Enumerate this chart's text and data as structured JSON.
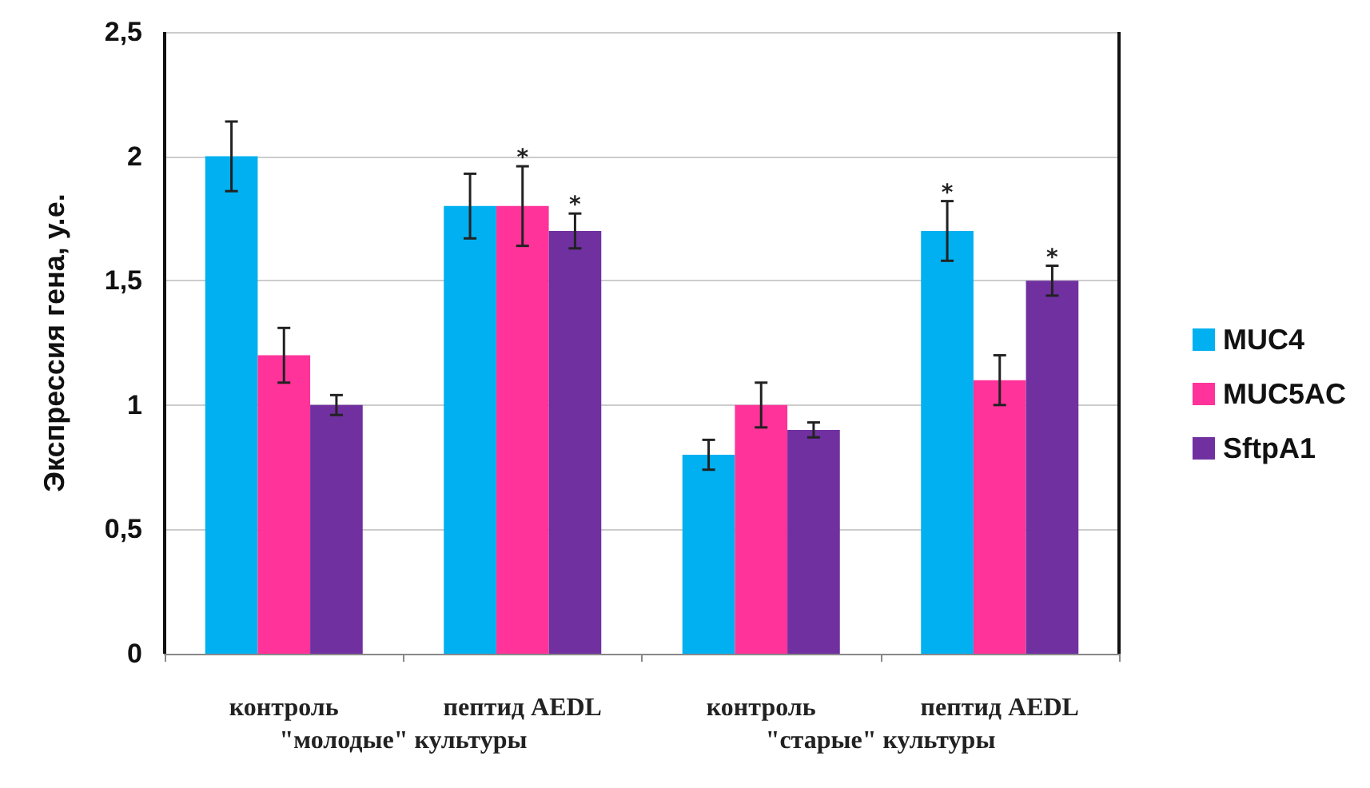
{
  "chart_data": {
    "type": "bar",
    "ylabel": "Экспрессия гена, у.е.",
    "categories": [
      "контроль",
      "пептид AEDL",
      "контроль",
      "пептид AEDL"
    ],
    "series": [
      {
        "name": "MUC4",
        "color": "#00b0f0",
        "values": [
          2.0,
          1.8,
          0.8,
          1.7
        ],
        "errors": [
          0.14,
          0.13,
          0.06,
          0.12
        ],
        "value_labels": [
          null,
          null,
          null,
          "*"
        ]
      },
      {
        "name": "MUC5AC",
        "color": "#ff3399",
        "values": [
          1.2,
          1.8,
          1.0,
          1.1
        ],
        "errors": [
          0.11,
          0.16,
          0.09,
          0.1
        ],
        "value_labels": [
          null,
          "*",
          null,
          null
        ]
      },
      {
        "name": "SftpA1",
        "color": "#7030a0",
        "values": [
          1.0,
          1.7,
          0.9,
          1.5
        ],
        "errors": [
          0.04,
          0.07,
          0.03,
          0.06
        ],
        "value_labels": [
          null,
          "*",
          null,
          "*"
        ]
      }
    ],
    "ylim": [
      0,
      2.5
    ],
    "yticks": [
      {
        "value": 0,
        "label": "0"
      },
      {
        "value": 0.5,
        "label": "0,5"
      },
      {
        "value": 1,
        "label": "1"
      },
      {
        "value": 1.5,
        "label": "1,5"
      },
      {
        "value": 2,
        "label": "2"
      },
      {
        "value": 2.5,
        "label": "2,5"
      }
    ],
    "grid": "y",
    "legend": "right",
    "annotations": [
      "\"молодые\" культуры",
      "\"старые\" культуры"
    ]
  }
}
